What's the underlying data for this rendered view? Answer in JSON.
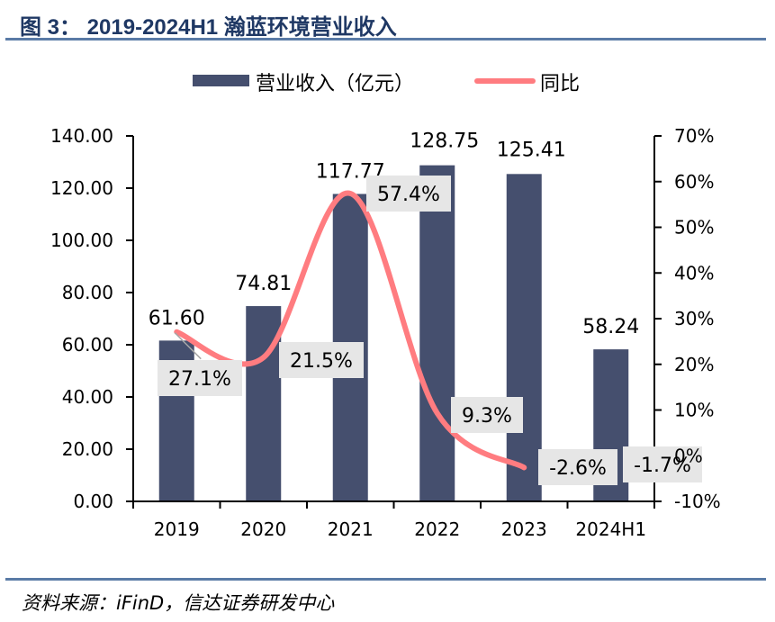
{
  "header": {
    "title": "图 3： 2019-2024H1 瀚蓝环境营业收入"
  },
  "footer": {
    "source": "资料来源：iFinD，信达证券研发中心"
  },
  "colors": {
    "bar": "#454f6e",
    "line": "#ff7c80",
    "title": "#1f3864",
    "rule": "#5a7ba6",
    "label_bg": "#e6e6e6"
  },
  "chart_data": {
    "type": "bar",
    "title": "2019-2024H1 瀚蓝环境营业收入",
    "categories": [
      "2019",
      "2020",
      "2021",
      "2022",
      "2023",
      "2024H1"
    ],
    "series": [
      {
        "name": "营业收入（亿元）",
        "type": "bar",
        "axis": "left",
        "values": [
          61.6,
          74.81,
          117.77,
          128.75,
          125.41,
          58.24
        ],
        "labels": [
          "61.60",
          "74.81",
          "117.77",
          "128.75",
          "125.41",
          "58.24"
        ]
      },
      {
        "name": "同比",
        "type": "line",
        "axis": "right",
        "values": [
          27.1,
          21.5,
          57.4,
          9.3,
          -2.6,
          -1.7
        ],
        "labels": [
          "27.1%",
          "21.5%",
          "57.4%",
          "9.3%",
          "-2.6%",
          "-1.7%"
        ],
        "line_points_drawn": 5
      }
    ],
    "left_axis": {
      "ylim": [
        0,
        140
      ],
      "ticks": [
        "0.00",
        "20.00",
        "40.00",
        "60.00",
        "80.00",
        "100.00",
        "120.00",
        "140.00"
      ]
    },
    "right_axis": {
      "ylim": [
        -10,
        70
      ],
      "ticks": [
        "-10%",
        "0%",
        "10%",
        "20%",
        "30%",
        "40%",
        "50%",
        "60%",
        "70%"
      ]
    },
    "legend": {
      "position": "top",
      "entries": [
        "营业收入（亿元）",
        "同比"
      ]
    },
    "grid": false
  }
}
